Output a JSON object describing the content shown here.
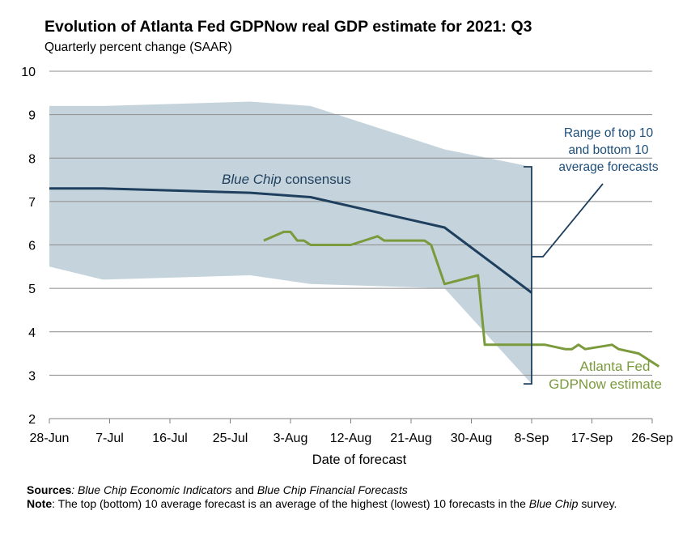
{
  "chart_data": {
    "type": "line",
    "title": "Evolution of Atlanta Fed GDPNow real GDP estimate for 2021: Q3",
    "subtitle": "Quarterly percent change (SAAR)",
    "xlabel": "Date of forecast",
    "ylabel": "",
    "ylim": [
      2,
      10
    ],
    "yticks": [
      2,
      3,
      4,
      5,
      6,
      7,
      8,
      9,
      10
    ],
    "x_range_days": [
      0,
      90
    ],
    "xticks": [
      {
        "day": 0,
        "label": "28-Jun"
      },
      {
        "day": 9,
        "label": "7-Jul"
      },
      {
        "day": 18,
        "label": "16-Jul"
      },
      {
        "day": 27,
        "label": "25-Jul"
      },
      {
        "day": 36,
        "label": "3-Aug"
      },
      {
        "day": 45,
        "label": "12-Aug"
      },
      {
        "day": 54,
        "label": "21-Aug"
      },
      {
        "day": 63,
        "label": "30-Aug"
      },
      {
        "day": 72,
        "label": "8-Sep"
      },
      {
        "day": 81,
        "label": "17-Sep"
      },
      {
        "day": 90,
        "label": "26-Sep"
      }
    ],
    "grid": true,
    "band": {
      "name": "Range of top 10 and bottom 10 average forecasts",
      "upper": [
        [
          0,
          9.2
        ],
        [
          8,
          9.2
        ],
        [
          30,
          9.3
        ],
        [
          39,
          9.2
        ],
        [
          59,
          8.2
        ],
        [
          72,
          7.8
        ]
      ],
      "lower": [
        [
          0,
          5.5
        ],
        [
          8,
          5.2
        ],
        [
          30,
          5.3
        ],
        [
          39,
          5.1
        ],
        [
          59,
          5.0
        ],
        [
          72,
          2.8
        ]
      ],
      "color": "#c5d4dc"
    },
    "series": [
      {
        "name": "Blue Chip consensus",
        "color": "#1e3f5e",
        "points": [
          [
            0,
            7.3
          ],
          [
            8,
            7.3
          ],
          [
            30,
            7.2
          ],
          [
            39,
            7.1
          ],
          [
            59,
            6.4
          ],
          [
            72,
            4.9
          ]
        ]
      },
      {
        "name": "Atlanta Fed GDPNow estimate",
        "color": "#7a9a3c",
        "points": [
          [
            32,
            6.1
          ],
          [
            35,
            6.3
          ],
          [
            36,
            6.3
          ],
          [
            37,
            6.1
          ],
          [
            38,
            6.1
          ],
          [
            39,
            6.0
          ],
          [
            45,
            6.0
          ],
          [
            49,
            6.2
          ],
          [
            50,
            6.1
          ],
          [
            56,
            6.1
          ],
          [
            57,
            6.0
          ],
          [
            59,
            5.1
          ],
          [
            64,
            5.3
          ],
          [
            65,
            3.7
          ],
          [
            74,
            3.7
          ],
          [
            77,
            3.6
          ],
          [
            78,
            3.6
          ],
          [
            79,
            3.7
          ],
          [
            80,
            3.6
          ],
          [
            84,
            3.7
          ],
          [
            85,
            3.6
          ],
          [
            88,
            3.5
          ],
          [
            91,
            3.2
          ]
        ]
      }
    ],
    "annotations": {
      "bluechip_prefix": "Blue Chip",
      "bluechip_suffix": " consensus",
      "range_line1": "Range of top 10",
      "range_line2": "and bottom 10",
      "range_line3": "average forecasts",
      "gdpnow_line1": "Atlanta Fed",
      "gdpnow_line2": "GDPNow estimate"
    }
  },
  "footnotes": {
    "sources_label": "Sources",
    "sources_sep": ": ",
    "sources_pub1": "Blue Chip Economic Indicators",
    "sources_and": " and ",
    "sources_pub2": "Blue Chip Financial Forecasts",
    "note_label": "Note",
    "note_text_a": ": The top (bottom) 10 average forecast is an average of the highest (lowest) 10 forecasts in the ",
    "note_italic": "Blue Chip",
    "note_text_b": " survey."
  }
}
